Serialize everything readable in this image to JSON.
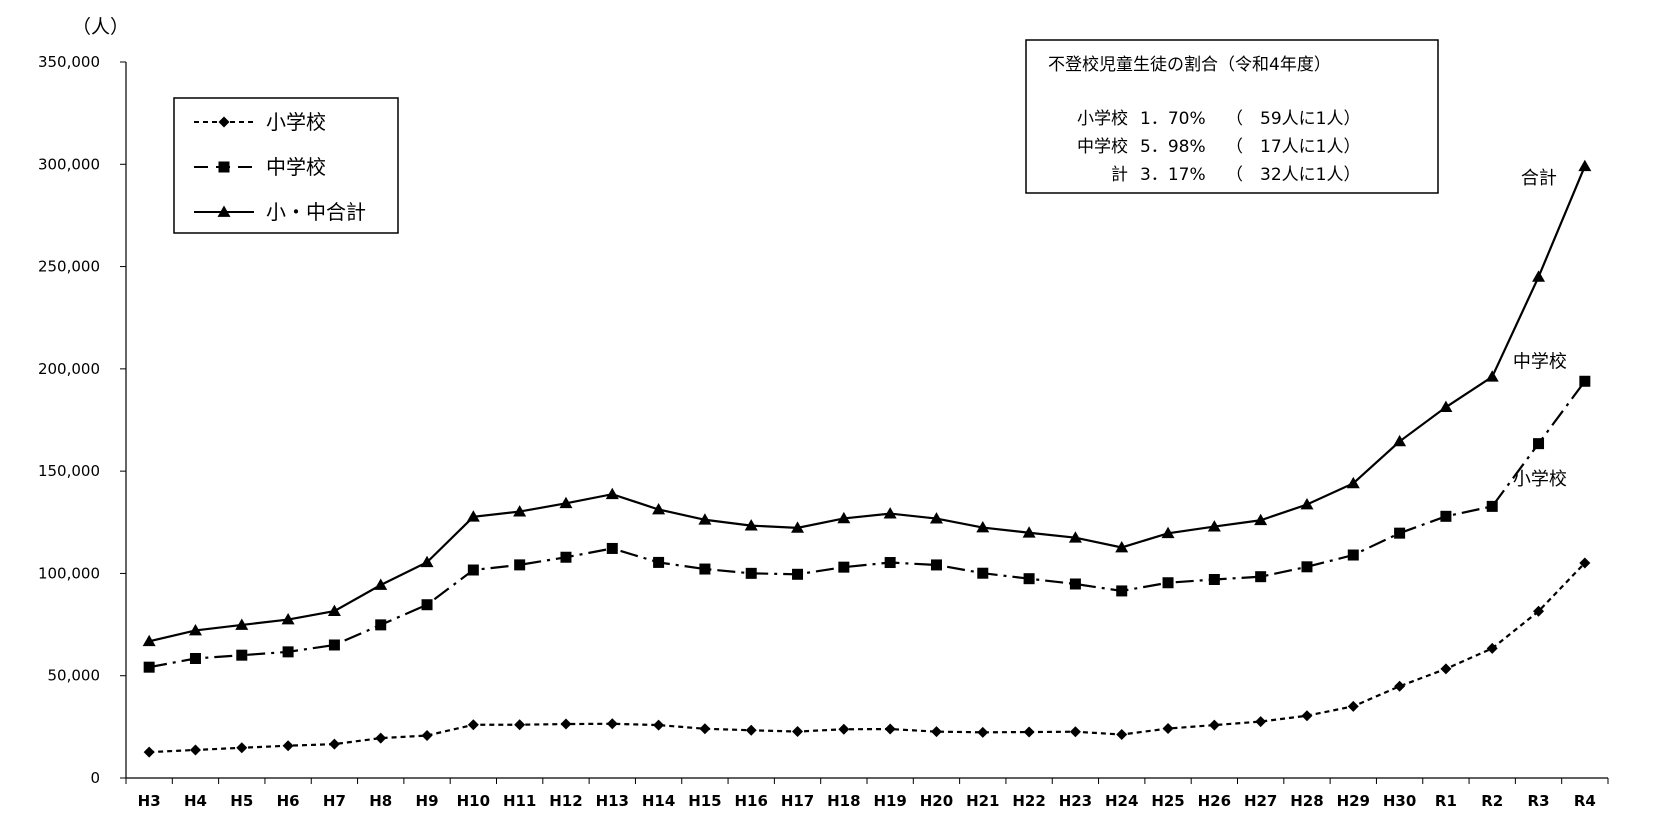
{
  "chart_data": {
    "type": "line",
    "unit_label": "（人）",
    "categories": [
      "H3",
      "H4",
      "H5",
      "H6",
      "H7",
      "H8",
      "H9",
      "H10",
      "H11",
      "H12",
      "H13",
      "H14",
      "H15",
      "H16",
      "H17",
      "H18",
      "H19",
      "H20",
      "H21",
      "H22",
      "H23",
      "H24",
      "H25",
      "H26",
      "H27",
      "H28",
      "H29",
      "H30",
      "R1",
      "R2",
      "R3",
      "R4"
    ],
    "ylim": [
      0,
      350000
    ],
    "yticks": [
      0,
      50000,
      100000,
      150000,
      200000,
      250000,
      300000,
      350000
    ],
    "ytick_labels": [
      "0",
      "50,000",
      "100,000",
      "150,000",
      "200,000",
      "250,000",
      "300,000",
      "350,000"
    ],
    "grid": false,
    "legend_position": "top-left",
    "series": [
      {
        "name": "小学校",
        "end_label": "小学校",
        "marker": "diamond",
        "line_style": "dashed",
        "values": [
          12645,
          13710,
          14769,
          15786,
          16569,
          19498,
          20765,
          26017,
          26047,
          26373,
          26511,
          25869,
          24077,
          23318,
          22709,
          23825,
          23927,
          22652,
          22327,
          22463,
          22622,
          21243,
          24175,
          25864,
          27583,
          30448,
          35032,
          44841,
          53350,
          63350,
          81498,
          105112
        ]
      },
      {
        "name": "中学校",
        "end_label": "中学校",
        "marker": "square",
        "line_style": "dash-dot",
        "values": [
          54172,
          58421,
          60039,
          61663,
          65022,
          74853,
          84701,
          101675,
          104180,
          107913,
          112211,
          105383,
          102149,
          100040,
          99578,
          103069,
          105328,
          104153,
          100105,
          97428,
          94836,
          91446,
          95442,
          97033,
          98408,
          103235,
          108999,
          119687,
          127922,
          132777,
          163442,
          193936
        ]
      },
      {
        "name": "小・中合計",
        "end_label": "合計",
        "marker": "triangle",
        "line_style": "solid",
        "values": [
          66817,
          72131,
          74808,
          77449,
          81591,
          94351,
          105466,
          127692,
          130227,
          134286,
          138722,
          131252,
          126226,
          123358,
          122287,
          126894,
          129255,
          126805,
          122432,
          119891,
          117458,
          112689,
          119617,
          122897,
          125991,
          133683,
          144031,
          164528,
          181272,
          196127,
          244940,
          299048
        ]
      }
    ]
  },
  "info_box": {
    "title": "不登校児童生徒の割合（令和4年度）",
    "rows": [
      {
        "label": "小学校",
        "pct": "1．70%",
        "ratio": "（　59人に1人）"
      },
      {
        "label": "中学校",
        "pct": "5．98%",
        "ratio": "（　17人に1人）"
      },
      {
        "label": "計",
        "pct": "3．17%",
        "ratio": "（　32人に1人）"
      }
    ]
  }
}
